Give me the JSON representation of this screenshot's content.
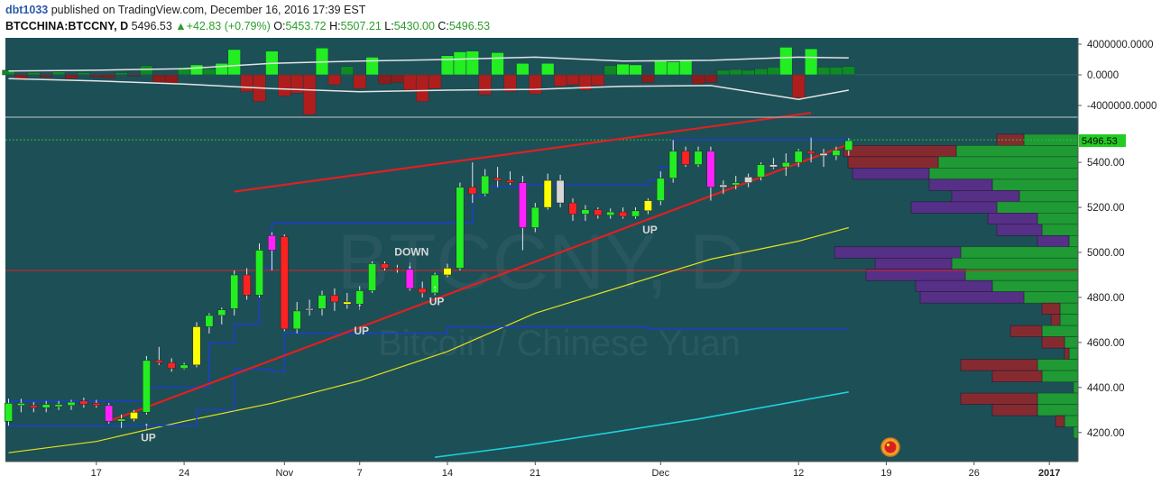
{
  "header": {
    "author": "dbt1033",
    "published": "published on TradingView.com, December 16, 2016 17:39 EST",
    "symbol": "BTCCHINA:BTCCNY, D",
    "last": "5496.53",
    "change": "+42.83 (+0.79%)",
    "o_label": "O:",
    "o": "5453.72",
    "h_label": "H:",
    "h": "5507.21",
    "l_label": "L:",
    "l": "5430.00",
    "c_label": "C:",
    "c": "5496.53"
  },
  "watermark": {
    "line1": "BTCCNY, D",
    "line2": "Bitcoin / Chinese Yuan"
  },
  "colors": {
    "background": "#1d4f57",
    "up_candle": "#22ee22",
    "down_candle": "#ff2222",
    "trend_line": "#e02020",
    "donchian": "#1a3fd0",
    "sma_yellow": "#e6e21a",
    "sma_cyan": "#1fd0d8",
    "vp_green": "#1f9a35",
    "vp_red": "#8b2a2e",
    "vp_purple": "#5a2f8a",
    "vp_teal": "#2a7f8a",
    "marker_yellow": "#ffff00",
    "marker_magenta": "#ff22ff",
    "marker_white": "#d6d6d6"
  },
  "price_axis": {
    "ticks": [
      "5400.00",
      "5200.00",
      "5000.00",
      "4800.00",
      "4600.00",
      "4400.00",
      "4200.00"
    ],
    "last_label": "5496.53"
  },
  "osc_axis": {
    "ticks": [
      "4000000.0000",
      "0.0000",
      "-4000000.0000"
    ]
  },
  "time_axis": {
    "ticks": [
      "17",
      "24",
      "Nov",
      "7",
      "14",
      "21",
      "Dec",
      "12",
      "19",
      "26",
      "2017"
    ]
  },
  "chart_data": {
    "type": "candlestick",
    "ylim": [
      4080,
      5630
    ],
    "ohlc": [
      [
        "Oct 10",
        4250,
        4350,
        4230,
        4330
      ],
      [
        "Oct 11",
        4320,
        4350,
        4290,
        4330
      ],
      [
        "Oct 12",
        4320,
        4335,
        4290,
        4310
      ],
      [
        "Oct 13",
        4310,
        4340,
        4290,
        4325
      ],
      [
        "Oct 14",
        4315,
        4340,
        4300,
        4325
      ],
      [
        "Oct 15",
        4320,
        4345,
        4300,
        4335
      ],
      [
        "Oct 16",
        4340,
        4355,
        4310,
        4325
      ],
      [
        "Oct 17",
        4330,
        4345,
        4310,
        4320
      ],
      [
        "Oct 18",
        4320,
        4330,
        4240,
        4250
      ],
      [
        "Oct 19",
        4250,
        4280,
        4220,
        4260
      ],
      [
        "Oct 20",
        4260,
        4300,
        4250,
        4290
      ],
      [
        "Oct 21",
        4290,
        4540,
        4280,
        4520
      ],
      [
        "Oct 22",
        4520,
        4580,
        4500,
        4510
      ],
      [
        "Oct 23",
        4510,
        4530,
        4470,
        4485
      ],
      [
        "Oct 24",
        4485,
        4510,
        4480,
        4500
      ],
      [
        "Oct 25",
        4500,
        4690,
        4490,
        4670
      ],
      [
        "Oct 26",
        4670,
        4730,
        4640,
        4720
      ],
      [
        "Oct 27",
        4720,
        4755,
        4680,
        4745
      ],
      [
        "Oct 28",
        4750,
        4920,
        4720,
        4900
      ],
      [
        "Oct 29",
        4900,
        4930,
        4790,
        4810
      ],
      [
        "Oct 30",
        4810,
        5040,
        4800,
        5010
      ],
      [
        "Oct 31",
        5010,
        5090,
        4920,
        5075
      ],
      [
        "Nov 1",
        5070,
        5080,
        4650,
        4660
      ],
      [
        "Nov 2",
        4660,
        4780,
        4640,
        4740
      ],
      [
        "Nov 3",
        4745,
        4790,
        4720,
        4750
      ],
      [
        "Nov 4",
        4750,
        4830,
        4720,
        4810
      ],
      [
        "Nov 5",
        4810,
        4840,
        4740,
        4780
      ],
      [
        "Nov 6",
        4780,
        4820,
        4750,
        4770
      ],
      [
        "Nov 7",
        4770,
        4850,
        4760,
        4830
      ],
      [
        "Nov 8",
        4830,
        4960,
        4820,
        4950
      ],
      [
        "Nov 9",
        4950,
        4960,
        4920,
        4930
      ],
      [
        "Nov 10",
        4930,
        4945,
        4910,
        4925
      ],
      [
        "Nov 11",
        4925,
        4940,
        4830,
        4840
      ],
      [
        "Nov 12",
        4840,
        4870,
        4800,
        4820
      ],
      [
        "Nov 13",
        4820,
        4910,
        4810,
        4900
      ],
      [
        "Nov 14",
        4900,
        4950,
        4890,
        4930
      ],
      [
        "Nov 15",
        4930,
        5310,
        4920,
        5290
      ],
      [
        "Nov 16",
        5290,
        5400,
        5220,
        5260
      ],
      [
        "Nov 17",
        5260,
        5370,
        5250,
        5340
      ],
      [
        "Nov 18",
        5330,
        5380,
        5290,
        5320
      ],
      [
        "Nov 19",
        5320,
        5360,
        5300,
        5310
      ],
      [
        "Nov 20",
        5310,
        5340,
        5010,
        5110
      ],
      [
        "Nov 21",
        5110,
        5220,
        5090,
        5200
      ],
      [
        "Nov 22",
        5200,
        5350,
        5190,
        5320
      ],
      [
        "Nov 23",
        5320,
        5345,
        5200,
        5220
      ],
      [
        "Nov 24",
        5220,
        5240,
        5140,
        5170
      ],
      [
        "Nov 25",
        5170,
        5210,
        5140,
        5190
      ],
      [
        "Nov 26",
        5190,
        5200,
        5150,
        5165
      ],
      [
        "Nov 27",
        5165,
        5195,
        5150,
        5180
      ],
      [
        "Nov 28",
        5180,
        5200,
        5150,
        5160
      ],
      [
        "Nov 29",
        5160,
        5200,
        5150,
        5185
      ],
      [
        "Nov 30",
        5185,
        5240,
        5170,
        5230
      ],
      [
        "Dec 1",
        5230,
        5360,
        5210,
        5330
      ],
      [
        "Dec 2",
        5330,
        5500,
        5310,
        5450
      ],
      [
        "Dec 3",
        5450,
        5470,
        5380,
        5390
      ],
      [
        "Dec 4",
        5390,
        5470,
        5380,
        5450
      ],
      [
        "Dec 5",
        5450,
        5470,
        5230,
        5290
      ],
      [
        "Dec 6",
        5290,
        5320,
        5260,
        5300
      ],
      [
        "Dec 7",
        5300,
        5340,
        5280,
        5310
      ],
      [
        "Dec 8",
        5310,
        5350,
        5290,
        5335
      ],
      [
        "Dec 9",
        5335,
        5400,
        5320,
        5390
      ],
      [
        "Dec 10",
        5390,
        5420,
        5370,
        5380
      ],
      [
        "Dec 11",
        5380,
        5440,
        5340,
        5400
      ],
      [
        "Dec 12",
        5400,
        5460,
        5380,
        5450
      ],
      [
        "Dec 13",
        5450,
        5510,
        5400,
        5440
      ],
      [
        "Dec 14",
        5440,
        5460,
        5380,
        5430
      ],
      [
        "Dec 15",
        5430,
        5470,
        5410,
        5454
      ],
      [
        "Dec 16",
        5453.72,
        5507.21,
        5430.0,
        5496.53
      ]
    ],
    "annotations": [
      {
        "text": "UP",
        "date": "Oct 21",
        "price": 4160
      },
      {
        "text": "UP",
        "date": "Nov 7",
        "price": 4635
      },
      {
        "text": "DOWN",
        "date": "Nov 11",
        "price": 4985
      },
      {
        "text": "UP",
        "date": "Nov 13",
        "price": 4765
      },
      {
        "text": "UP",
        "date": "Nov 30",
        "price": 5085
      }
    ],
    "oscillator": [
      [
        "Oct 10",
        600000
      ],
      [
        "Oct 11",
        -500000
      ],
      [
        "Oct 12",
        300000
      ],
      [
        "Oct 13",
        -300000
      ],
      [
        "Oct 14",
        400000
      ],
      [
        "Oct 15",
        -500000
      ],
      [
        "Oct 16",
        300000
      ],
      [
        "Oct 17",
        -300000
      ],
      [
        "Oct 18",
        -400000
      ],
      [
        "Oct 19",
        300000
      ],
      [
        "Oct 20",
        -200000
      ],
      [
        "Oct 21",
        1200000
      ],
      [
        "Oct 22",
        -1000000
      ],
      [
        "Oct 23",
        -1100000
      ],
      [
        "Oct 24",
        1000000
      ],
      [
        "Oct 25",
        1300000
      ],
      [
        "Oct 26",
        800000
      ],
      [
        "Oct 27",
        1500000
      ],
      [
        "Oct 28",
        3300000
      ],
      [
        "Oct 29",
        -2200000
      ],
      [
        "Oct 30",
        -3500000
      ],
      [
        "Oct 31",
        3100000
      ],
      [
        "Nov 1",
        -2800000
      ],
      [
        "Nov 2",
        -2400000
      ],
      [
        "Nov 3",
        -5200000
      ],
      [
        "Nov 4",
        3500000
      ],
      [
        "Nov 5",
        -1300000
      ],
      [
        "Nov 6",
        1100000
      ],
      [
        "Nov 7",
        -1800000
      ],
      [
        "Nov 8",
        2300000
      ],
      [
        "Nov 9",
        -1200000
      ],
      [
        "Nov 10",
        -1000000
      ],
      [
        "Nov 11",
        -2000000
      ],
      [
        "Nov 12",
        -3500000
      ],
      [
        "Nov 13",
        -1800000
      ],
      [
        "Nov 14",
        2500000
      ],
      [
        "Nov 15",
        3000000
      ],
      [
        "Nov 16",
        3100000
      ],
      [
        "Nov 17",
        -2600000
      ],
      [
        "Nov 18",
        2900000
      ],
      [
        "Nov 19",
        -2200000
      ],
      [
        "Nov 20",
        1500000
      ],
      [
        "Nov 21",
        -2500000
      ],
      [
        "Nov 22",
        1500000
      ],
      [
        "Nov 23",
        -1500000
      ],
      [
        "Nov 24",
        -1300000
      ],
      [
        "Nov 25",
        -2000000
      ],
      [
        "Nov 26",
        -1400000
      ],
      [
        "Nov 27",
        1200000
      ],
      [
        "Nov 28",
        1400000
      ],
      [
        "Nov 29",
        1300000
      ],
      [
        "Nov 30",
        -1000000
      ],
      [
        "Dec 1",
        1800000
      ],
      [
        "Dec 2",
        1700000
      ],
      [
        "Dec 3",
        2000000
      ],
      [
        "Dec 4",
        -1200000
      ],
      [
        "Dec 5",
        -1000000
      ],
      [
        "Dec 6",
        600000
      ],
      [
        "Dec 7",
        700000
      ],
      [
        "Dec 8",
        600000
      ],
      [
        "Dec 9",
        800000
      ],
      [
        "Dec 10",
        1000000
      ],
      [
        "Dec 11",
        3600000
      ],
      [
        "Dec 12",
        -3000000
      ],
      [
        "Dec 13",
        3400000
      ],
      [
        "Dec 14",
        1000000
      ],
      [
        "Dec 15",
        1000000
      ],
      [
        "Dec 16",
        1100000
      ]
    ],
    "osc_band_upper": [
      [
        "Oct 10",
        500000
      ],
      [
        "Oct 17",
        600000
      ],
      [
        "Oct 24",
        800000
      ],
      [
        "Oct 31",
        1500000
      ],
      [
        "Nov 7",
        1800000
      ],
      [
        "Nov 14",
        2000000
      ],
      [
        "Nov 21",
        2300000
      ],
      [
        "Nov 28",
        1800000
      ],
      [
        "Dec 5",
        1900000
      ],
      [
        "Dec 12",
        2300000
      ],
      [
        "Dec 16",
        2200000
      ]
    ],
    "osc_band_lower": [
      [
        "Oct 10",
        -500000
      ],
      [
        "Oct 17",
        -800000
      ],
      [
        "Oct 24",
        -1200000
      ],
      [
        "Oct 31",
        -1800000
      ],
      [
        "Nov 7",
        -2200000
      ],
      [
        "Nov 14",
        -2000000
      ],
      [
        "Nov 21",
        -1900000
      ],
      [
        "Nov 28",
        -1500000
      ],
      [
        "Dec 5",
        -1400000
      ],
      [
        "Dec 12",
        -3200000
      ],
      [
        "Dec 16",
        -2000000
      ]
    ],
    "sma_yellow": [
      [
        "Oct 10",
        4110
      ],
      [
        "Oct 17",
        4160
      ],
      [
        "Oct 24",
        4250
      ],
      [
        "Oct 31",
        4330
      ],
      [
        "Nov 7",
        4430
      ],
      [
        "Nov 14",
        4560
      ],
      [
        "Nov 21",
        4730
      ],
      [
        "Nov 28",
        4850
      ],
      [
        "Dec 5",
        4970
      ],
      [
        "Dec 12",
        5050
      ],
      [
        "Dec 16",
        5110
      ]
    ],
    "sma_cyan": [
      [
        "Nov 13",
        4090
      ],
      [
        "Nov 20",
        4140
      ],
      [
        "Nov 27",
        4200
      ],
      [
        "Dec 4",
        4260
      ],
      [
        "Dec 11",
        4330
      ],
      [
        "Dec 16",
        4380
      ]
    ],
    "donchian_upper": [
      [
        "Oct 10",
        4340
      ],
      [
        "Oct 20",
        4340
      ],
      [
        "Oct 21",
        4400
      ],
      [
        "Oct 26",
        4600
      ],
      [
        "Oct 28",
        4680
      ],
      [
        "Oct 30",
        4930
      ],
      [
        "Oct 31",
        5130
      ],
      [
        "Nov 14",
        5130
      ],
      [
        "Nov 15",
        5130
      ],
      [
        "Nov 16",
        5250
      ],
      [
        "Nov 17",
        5290
      ],
      [
        "Nov 20",
        5300
      ],
      [
        "Nov 30",
        5320
      ],
      [
        "Dec 1",
        5380
      ],
      [
        "Dec 2",
        5500
      ],
      [
        "Dec 16",
        5510
      ]
    ],
    "donchian_lower": [
      [
        "Oct 10",
        4230
      ],
      [
        "Oct 20",
        4230
      ],
      [
        "Oct 25",
        4300
      ],
      [
        "Oct 28",
        4480
      ],
      [
        "Oct 31",
        4470
      ],
      [
        "Nov 1",
        4640
      ],
      [
        "Nov 13",
        4640
      ],
      [
        "Nov 14",
        4670
      ],
      [
        "Nov 15",
        4670
      ],
      [
        "Nov 30",
        4660
      ],
      [
        "Dec 16",
        4660
      ]
    ],
    "trend_lines": [
      {
        "from": [
          "Oct 18",
          4250
        ],
        "to": [
          "Dec 16",
          5480
        ]
      },
      {
        "from": [
          "Oct 28",
          5270
        ],
        "to": [
          "Dec 13",
          5620
        ]
      }
    ],
    "horizontal_lines": [
      {
        "price": 4920,
        "color": "#e02020",
        "style": "solid"
      },
      {
        "price": 5500,
        "color": "#22cc22",
        "style": "dotted"
      }
    ],
    "volume_profile": [
      {
        "price": 5500,
        "green": 60,
        "red": 30
      },
      {
        "price": 5450,
        "green": 135,
        "red": 125
      },
      {
        "price": 5400,
        "green": 155,
        "red": 100
      },
      {
        "price": 5350,
        "green": 165,
        "purple": 85
      },
      {
        "price": 5300,
        "green": 95,
        "purple": 70
      },
      {
        "price": 5250,
        "green": 65,
        "purple": 75
      },
      {
        "price": 5200,
        "green": 90,
        "purple": 95
      },
      {
        "price": 5150,
        "green": 45,
        "purple": 55
      },
      {
        "price": 5100,
        "green": 40,
        "purple": 50
      },
      {
        "price": 5050,
        "green": 10,
        "purple": 35
      },
      {
        "price": 5000,
        "green": 130,
        "purple": 140
      },
      {
        "price": 4950,
        "green": 140,
        "purple": 85
      },
      {
        "price": 4900,
        "green": 125,
        "purple": 110
      },
      {
        "price": 4850,
        "green": 95,
        "purple": 85
      },
      {
        "price": 4800,
        "green": 60,
        "purple": 115
      },
      {
        "price": 4750,
        "green": 20,
        "red": 20
      },
      {
        "price": 4700,
        "green": 20,
        "red": 10
      },
      {
        "price": 4650,
        "green": 40,
        "red": 35
      },
      {
        "price": 4600,
        "green": 15,
        "red": 25
      },
      {
        "price": 4550,
        "green": 10,
        "red": 5
      },
      {
        "price": 4500,
        "green": 45,
        "red": 85
      },
      {
        "price": 4450,
        "green": 40,
        "red": 55
      },
      {
        "price": 4400,
        "green": 5
      },
      {
        "price": 4350,
        "green": 45,
        "red": 85
      },
      {
        "price": 4300,
        "green": 45,
        "red": 50
      },
      {
        "price": 4250,
        "green": 15,
        "red": 10
      },
      {
        "price": 4200,
        "green": 5
      }
    ]
  }
}
